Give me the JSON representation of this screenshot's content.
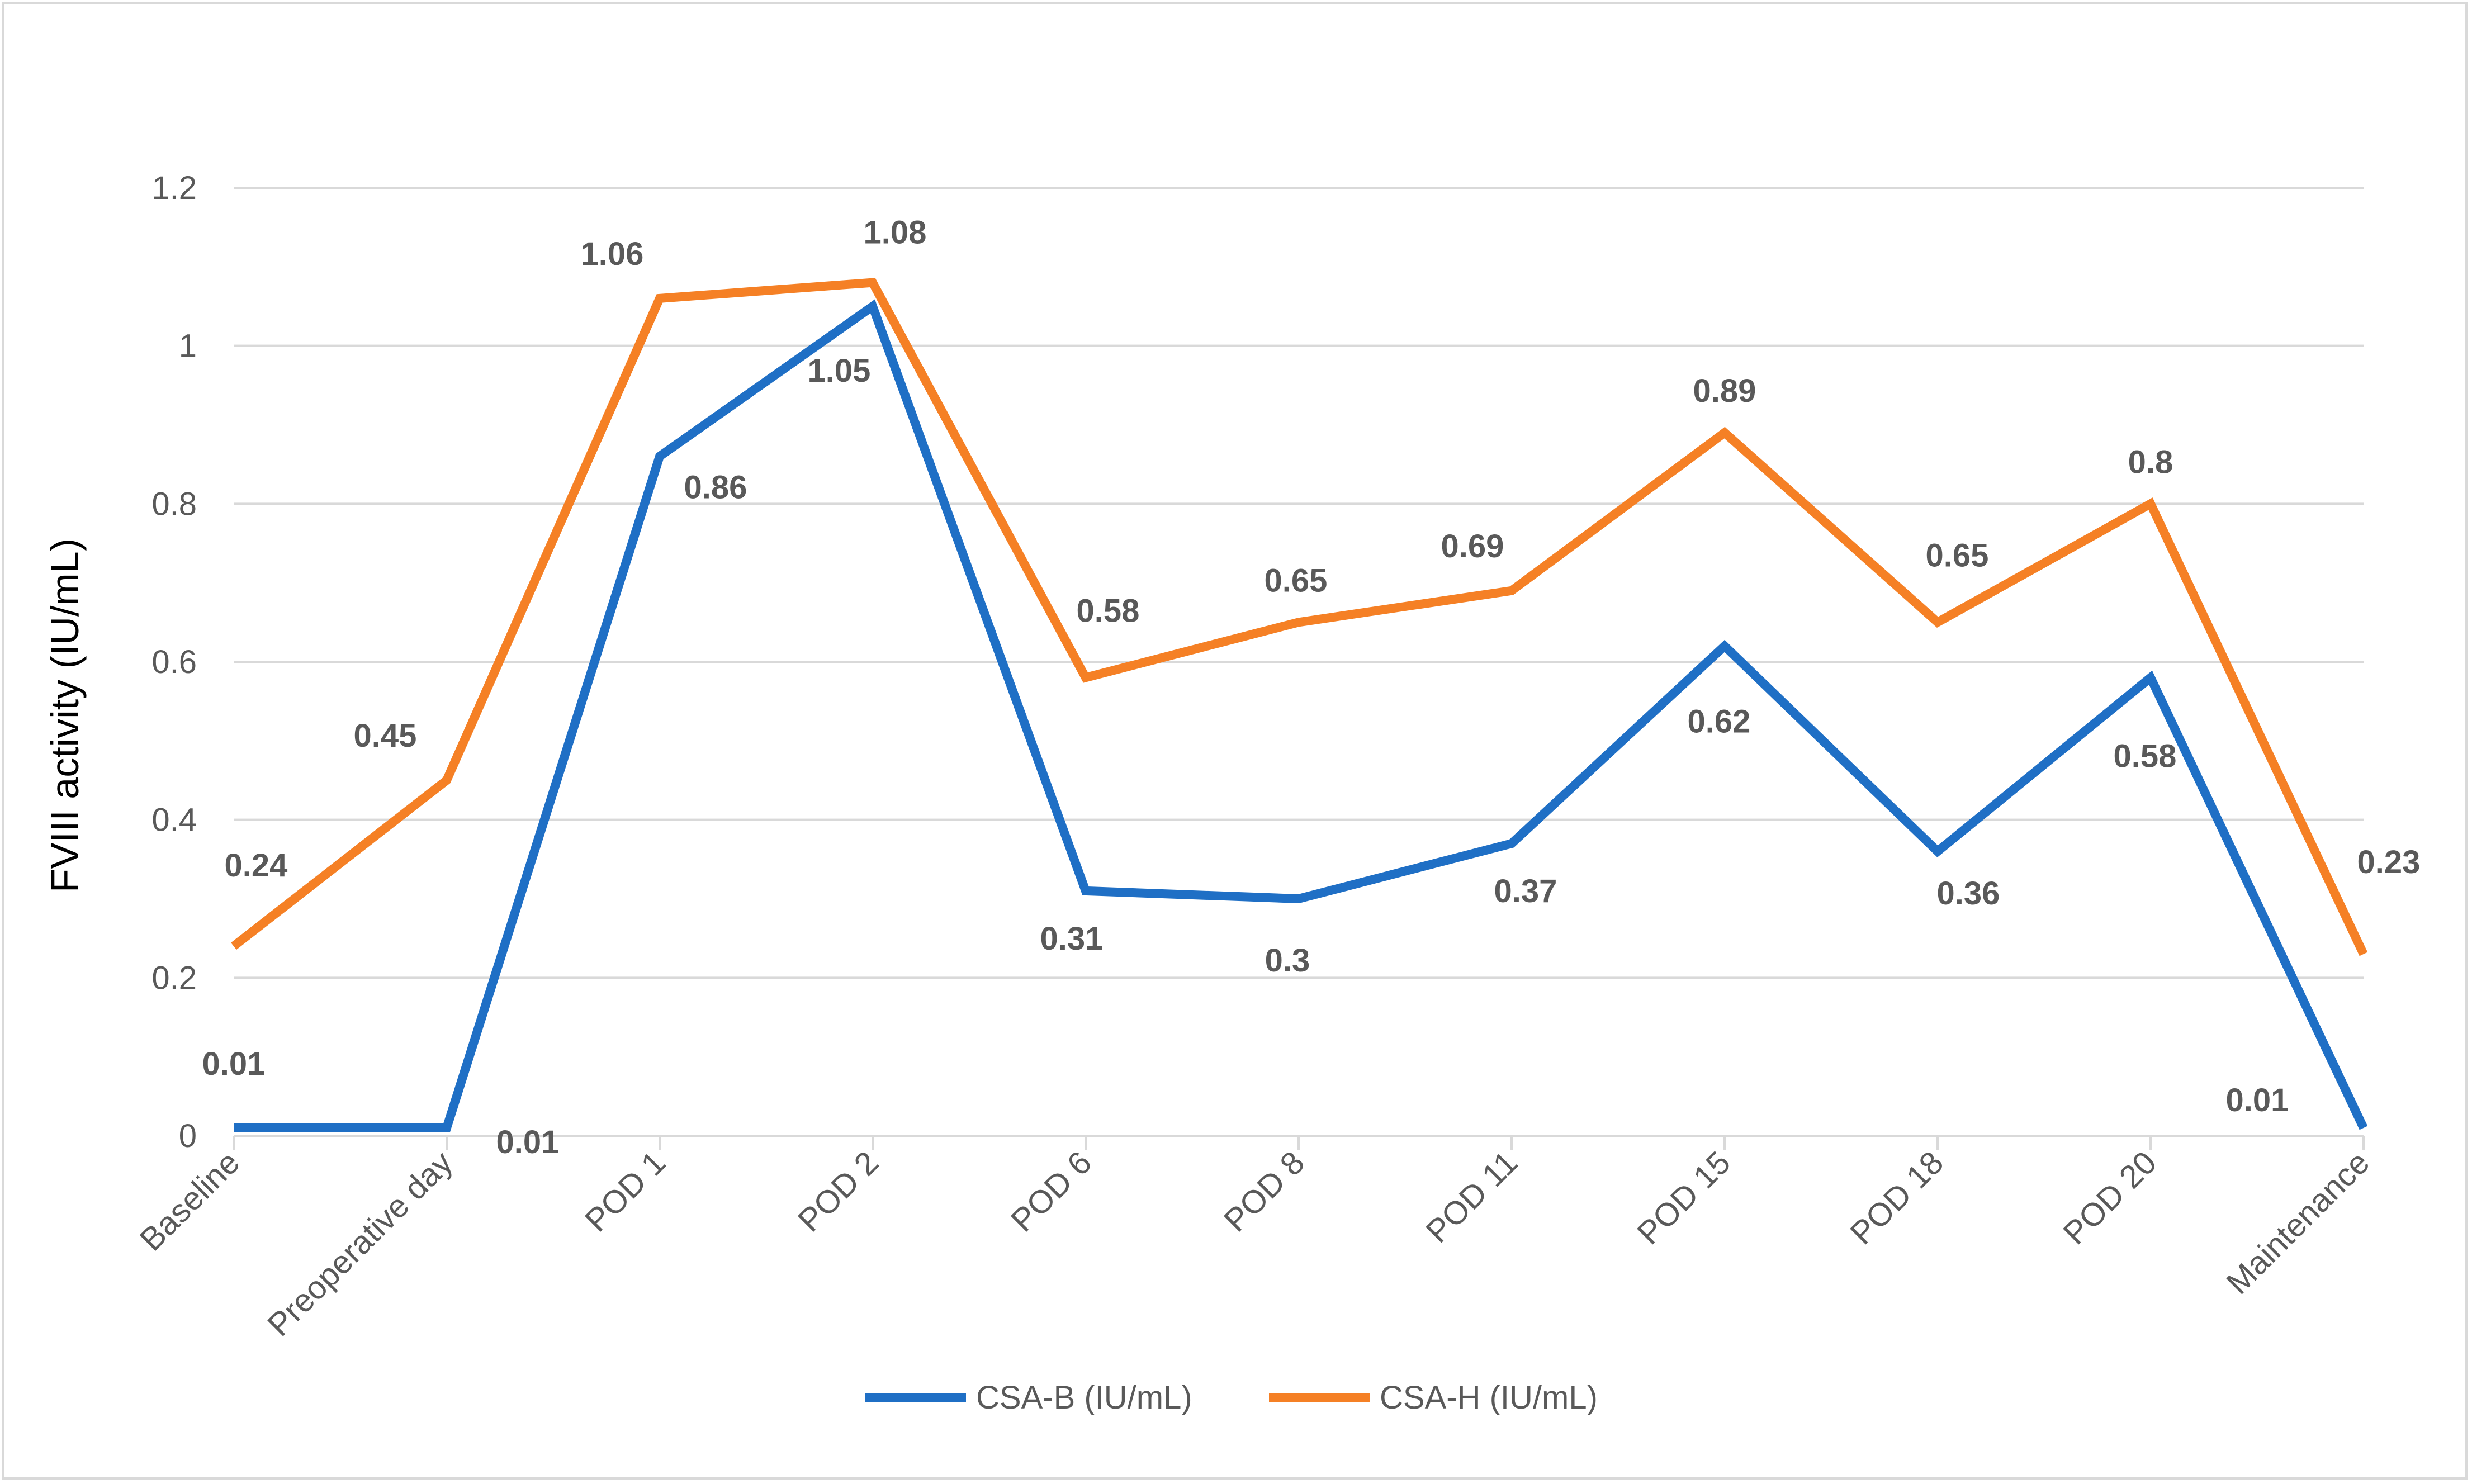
{
  "chart_data": {
    "type": "line",
    "title": "",
    "xlabel": "",
    "ylabel": "FVIII activity (IU/mL)",
    "ylim": [
      0,
      1.2
    ],
    "yticks": [
      0,
      0.2,
      0.4,
      0.6,
      0.8,
      1,
      1.2
    ],
    "ytick_labels": [
      "0",
      "0.2",
      "0.4",
      "0.6",
      "0.8",
      "1",
      "1.2"
    ],
    "grid": true,
    "legend_position": "bottom",
    "categories": [
      "Baseline",
      "Preoperative day",
      "POD 1",
      "POD 2",
      "POD 6",
      "POD 8",
      "POD 11",
      "POD 15",
      "POD 18",
      "POD 20",
      "Maintenance"
    ],
    "series": [
      {
        "name": "CSA-B (IU/mL)",
        "color": "#1F6FC5",
        "values": [
          0.01,
          0.01,
          0.86,
          1.05,
          0.31,
          0.3,
          0.37,
          0.62,
          0.36,
          0.58,
          0.01
        ],
        "labels": [
          "0.01",
          "0.01",
          "0.86",
          "1.05",
          "0.31",
          "0.3",
          "0.37",
          "0.62",
          "0.36",
          "0.58",
          "0.01"
        ]
      },
      {
        "name": "CSA-H (IU/mL)",
        "color": "#F58025",
        "values": [
          0.24,
          0.45,
          1.06,
          1.08,
          0.58,
          0.65,
          0.69,
          0.89,
          0.65,
          0.8,
          0.23
        ],
        "labels": [
          "0.24",
          "0.45",
          "1.06",
          "1.08",
          "0.58",
          "0.65",
          "0.69",
          "0.89",
          "0.65",
          "0.8",
          "0.23"
        ]
      }
    ]
  }
}
